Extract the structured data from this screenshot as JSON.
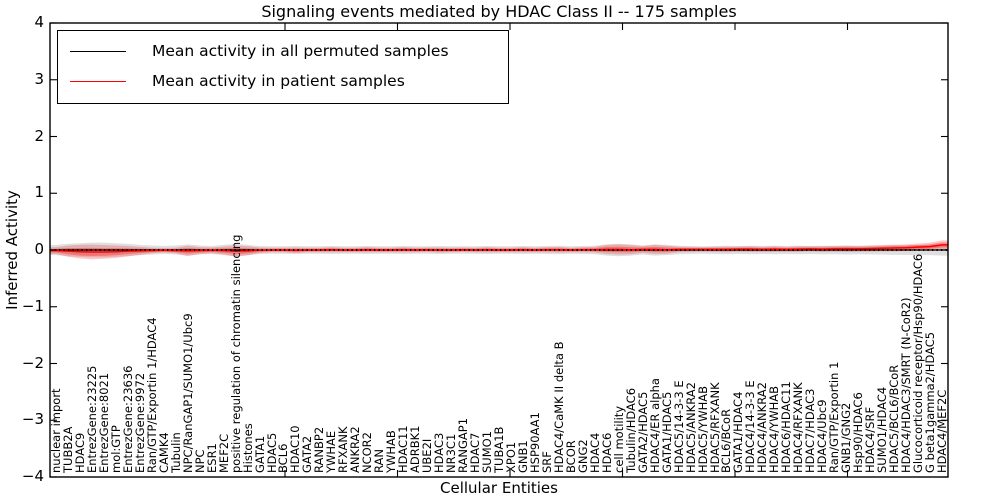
{
  "chart_data": {
    "type": "line",
    "title": "Signaling events mediated by HDAC Class II -- 175 samples",
    "xlabel": "Cellular Entities",
    "ylabel": "Inferred Activity",
    "ylim": [
      -4,
      4
    ],
    "yticks": [
      4,
      3,
      2,
      1,
      0,
      -1,
      -2,
      -3,
      -4
    ],
    "grid": false,
    "legend_position": "upper left",
    "colors": {
      "permuted_line": "#000000",
      "patient_line": "#ff0000",
      "permuted_band": "#b0b0b0",
      "patient_band": "#ff0000"
    },
    "categories": [
      "nuclear import",
      "TUBB2A",
      "HDAC9",
      "EntrezGene:23225",
      "EntrezGene:8021",
      "mol:GTP",
      "EntrezGene:23636",
      "EntrezGene:9972",
      "Ran/GTP/Exportin 1/HDAC4",
      "CAMK4",
      "Tubulin",
      "NPC/RanGAP1/SUMO1/Ubc9",
      "NPC",
      "ESR1",
      "MEF2C",
      "positive regulation of chromatin silencing",
      "Histones",
      "GATA1",
      "HDAC5",
      "BCL6",
      "HDAC10",
      "GATA2",
      "RANBP2",
      "YWHAE",
      "RFXANK",
      "ANKRA2",
      "NCOR2",
      "RAN",
      "YWHAB",
      "HDAC11",
      "ADRBK1",
      "UBE2I",
      "HDAC3",
      "NR3C1",
      "RANGAP1",
      "HDAC7",
      "SUMO1",
      "TUBA1B",
      "XPO1",
      "GNB1",
      "HSP90AA1",
      "SRF",
      "HDAC4/CaMK II delta B",
      "BCOR",
      "GNG2",
      "HDAC4",
      "HDAC6",
      "cell motility",
      "Tubulin/HDAC6",
      "GATA2/HDAC5",
      "HDAC4/ER alpha",
      "GATA1/HDAC5",
      "HDAC5/14-3-3 E",
      "HDAC5/ANKRA2",
      "HDAC5/YWHAB",
      "HDAC5/RFXANK",
      "BCL6/BCoR",
      "GATA1/HDAC4",
      "HDAC4/14-3-3 E",
      "HDAC4/ANKRA2",
      "HDAC4/YWHAB",
      "HDAC6/HDAC11",
      "HDAC4/RFXANK",
      "HDAC7/HDAC3",
      "HDAC4/Ubc9",
      "Ran/GTP/Exportin 1",
      "GNB1/GNG2",
      "Hsp90/HDAC6",
      "HDAC4/SRF",
      "SUMO1/HDAC4",
      "HDAC5/BCL6/BCoR",
      "HDAC4/HDAC3/SMRT (N-CoR2)",
      "Glucocorticoid receptor/Hsp90/HDAC6",
      "G beta1gamma2/HDAC5",
      "HDAC4/MEF2C"
    ],
    "series": [
      {
        "name": "Mean activity in all permuted samples",
        "color": "#000000",
        "values": [
          0,
          0,
          0,
          0,
          0,
          0,
          0,
          0,
          0,
          0,
          0,
          0,
          0,
          0,
          0,
          0,
          0,
          0,
          0,
          0,
          0,
          0,
          0,
          0,
          0,
          0,
          0,
          0,
          0,
          0,
          0,
          0,
          0,
          0,
          0,
          0,
          0,
          0,
          0,
          0,
          0,
          0,
          0,
          0,
          0,
          0,
          0,
          0,
          0,
          0,
          0,
          0,
          0,
          0,
          0,
          0,
          0,
          0,
          0,
          0,
          0,
          0,
          0,
          0,
          0,
          0,
          0,
          0,
          0,
          0,
          0,
          0,
          0,
          0,
          0
        ],
        "band_halfwidth": [
          0.09,
          0.11,
          0.12,
          0.13,
          0.13,
          0.12,
          0.11,
          0.09,
          0.08,
          0.07,
          0.08,
          0.1,
          0.08,
          0.07,
          0.09,
          0.11,
          0.09,
          0.07,
          0.065,
          0.065,
          0.07,
          0.065,
          0.065,
          0.07,
          0.065,
          0.065,
          0.07,
          0.065,
          0.065,
          0.07,
          0.065,
          0.065,
          0.07,
          0.065,
          0.065,
          0.065,
          0.07,
          0.065,
          0.065,
          0.07,
          0.065,
          0.07,
          0.075,
          0.065,
          0.07,
          0.075,
          0.1,
          0.11,
          0.1,
          0.08,
          0.1,
          0.09,
          0.075,
          0.07,
          0.065,
          0.07,
          0.075,
          0.07,
          0.075,
          0.07,
          0.075,
          0.07,
          0.075,
          0.07,
          0.075,
          0.075,
          0.08,
          0.075,
          0.08,
          0.08,
          0.085,
          0.085,
          0.09,
          0.09,
          0.1
        ]
      },
      {
        "name": "Mean activity in patient samples",
        "color": "#ff0000",
        "values": [
          -0.01,
          -0.02,
          -0.03,
          -0.035,
          -0.035,
          -0.03,
          -0.02,
          -0.015,
          -0.01,
          -0.005,
          -0.01,
          -0.015,
          -0.01,
          -0.005,
          -0.01,
          -0.02,
          -0.015,
          -0.005,
          0,
          0,
          -0.005,
          0,
          0,
          0.005,
          0,
          0,
          0.005,
          0,
          0,
          0.005,
          0,
          0.005,
          0,
          0,
          0.005,
          0,
          0.005,
          0,
          0,
          0.005,
          0,
          0.005,
          0.005,
          0,
          0.005,
          0.005,
          0.01,
          0.01,
          0.005,
          0.01,
          0.01,
          0.005,
          0.01,
          0.01,
          0.01,
          0.01,
          0.01,
          0.015,
          0.015,
          0.01,
          0.015,
          0.01,
          0.015,
          0.02,
          0.015,
          0.02,
          0.02,
          0.02,
          0.025,
          0.03,
          0.035,
          0.04,
          0.05,
          0.06,
          0.09
        ],
        "band_halfwidth": [
          0.06,
          0.1,
          0.12,
          0.13,
          0.12,
          0.11,
          0.09,
          0.07,
          0.05,
          0.04,
          0.05,
          0.09,
          0.06,
          0.05,
          0.07,
          0.1,
          0.08,
          0.05,
          0.04,
          0.04,
          0.05,
          0.04,
          0.04,
          0.045,
          0.04,
          0.04,
          0.045,
          0.04,
          0.04,
          0.045,
          0.04,
          0.04,
          0.045,
          0.04,
          0.04,
          0.04,
          0.045,
          0.04,
          0.04,
          0.045,
          0.04,
          0.045,
          0.05,
          0.04,
          0.045,
          0.05,
          0.08,
          0.09,
          0.08,
          0.06,
          0.08,
          0.07,
          0.05,
          0.045,
          0.04,
          0.045,
          0.05,
          0.045,
          0.05,
          0.045,
          0.05,
          0.045,
          0.05,
          0.045,
          0.05,
          0.05,
          0.055,
          0.05,
          0.055,
          0.055,
          0.06,
          0.06,
          0.065,
          0.07,
          0.08
        ]
      }
    ]
  }
}
